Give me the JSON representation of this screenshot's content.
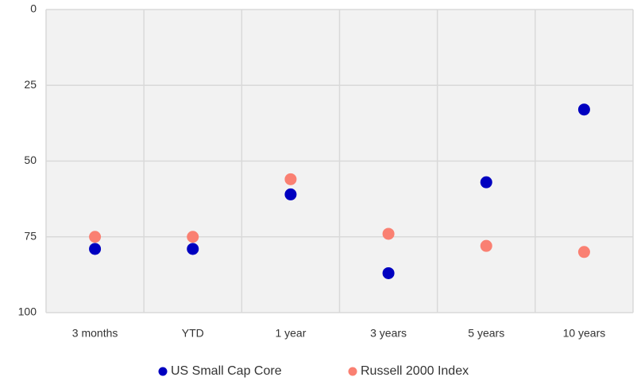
{
  "chart_data": {
    "type": "dot",
    "categories": [
      "3 months",
      "YTD",
      "1 year",
      "3 years",
      "5 years",
      "10 years"
    ],
    "series": [
      {
        "name": "US Small Cap Core",
        "color": "#0000c0",
        "values": [
          79,
          79,
          61,
          87,
          57,
          33
        ]
      },
      {
        "name": "Russell 2000 Index",
        "color": "#fa8072",
        "values": [
          75,
          75,
          56,
          74,
          78,
          80
        ]
      }
    ],
    "ylim": [
      0,
      100
    ],
    "yticks": [
      0,
      25,
      50,
      75,
      100
    ],
    "y_inverted": true,
    "grid": true,
    "legend": "bottom"
  }
}
